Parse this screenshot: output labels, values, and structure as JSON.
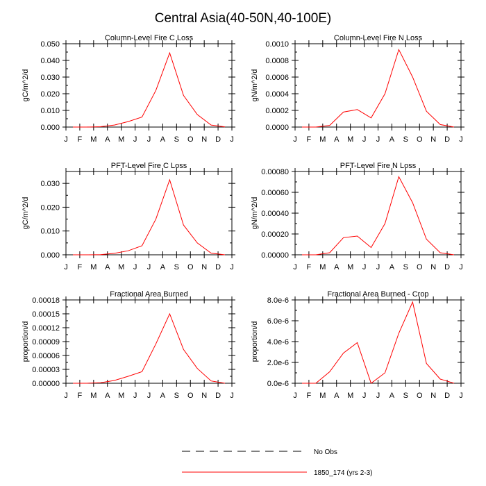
{
  "figure": {
    "title": "Central Asia(40-50N,40-100E)"
  },
  "months": [
    "J",
    "F",
    "M",
    "A",
    "M",
    "J",
    "J",
    "A",
    "S",
    "O",
    "N",
    "D",
    "J"
  ],
  "chart_data": [
    {
      "type": "line",
      "title": "Column-Level Fire C Loss",
      "ylabel": "gC/m^2/d",
      "ylim": [
        0,
        0.05
      ],
      "yticks": [
        "0.000",
        "0.010",
        "0.020",
        "0.030",
        "0.040",
        "0.050"
      ],
      "series": [
        {
          "name": "1850_174 (yrs 2-3)",
          "values": [
            0.0,
            0.0,
            0.0002,
            0.0012,
            0.0033,
            0.006,
            0.022,
            0.0445,
            0.019,
            0.0075,
            0.0012,
            0.0001
          ]
        }
      ]
    },
    {
      "type": "line",
      "title": "Column-Level Fire N Loss",
      "ylabel": "gN/m^2/d",
      "ylim": [
        0,
        0.001
      ],
      "yticks": [
        "0.0000",
        "0.0002",
        "0.0004",
        "0.0006",
        "0.0008",
        "0.0010"
      ],
      "series": [
        {
          "name": "1850_174 (yrs 2-3)",
          "values": [
            0.0,
            0.0,
            2e-05,
            0.00018,
            0.00021,
            0.00011,
            0.0004,
            0.00093,
            0.0006,
            0.00019,
            3e-05,
            0.0
          ]
        }
      ]
    },
    {
      "type": "line",
      "title": "PFT-Level Fire C Loss",
      "ylabel": "gC/m^2/d",
      "ylim": [
        0,
        0.035
      ],
      "yticks": [
        "0.000",
        "0.010",
        "0.020",
        "0.030"
      ],
      "yticks_values": [
        0,
        0.01,
        0.02,
        0.03
      ],
      "series": [
        {
          "name": "1850_174 (yrs 2-3)",
          "values": [
            0.0,
            0.0,
            0.0001,
            0.0006,
            0.0017,
            0.0038,
            0.015,
            0.0315,
            0.0125,
            0.005,
            0.0007,
            0.0
          ]
        }
      ]
    },
    {
      "type": "line",
      "title": "PFT-Level Fire N Loss",
      "ylabel": "gN/m^2/d",
      "ylim": [
        0,
        0.0008
      ],
      "yticks": [
        "0.00000",
        "0.00020",
        "0.00040",
        "0.00060",
        "0.00080"
      ],
      "yticks_values": [
        0,
        0.0002,
        0.0004,
        0.0006,
        0.0008
      ],
      "series": [
        {
          "name": "1850_174 (yrs 2-3)",
          "values": [
            0.0,
            0.0,
            2e-05,
            0.000165,
            0.00018,
            7e-05,
            0.0003,
            0.00075,
            0.0005,
            0.00015,
            2e-05,
            0.0
          ]
        }
      ]
    },
    {
      "type": "line",
      "title": "Fractional Area Burned",
      "ylabel": "proportion/d",
      "ylim": [
        0,
        0.00018
      ],
      "yticks": [
        "0.00000",
        "0.00003",
        "0.00006",
        "0.00009",
        "0.00012",
        "0.00015",
        "0.00018"
      ],
      "yticks_values": [
        0,
        3e-05,
        6e-05,
        9e-05,
        0.00012,
        0.00015,
        0.00018
      ],
      "series": [
        {
          "name": "1850_174 (yrs 2-3)",
          "values": [
            0.0,
            0.0,
            1e-06,
            6e-06,
            1.5e-05,
            2.5e-05,
            8.5e-05,
            0.00015,
            7.3e-05,
            3.2e-05,
            5e-06,
            0.0
          ]
        }
      ]
    },
    {
      "type": "line",
      "title": "Fractional Area Burned - Crop",
      "ylabel": "proportion/d",
      "ylim": [
        0,
        8e-06
      ],
      "yticks": [
        "0.0e-6",
        "2.0e-6",
        "4.0e-6",
        "6.0e-6",
        "8.0e-6"
      ],
      "yticks_values": [
        0,
        2e-06,
        4e-06,
        6e-06,
        8e-06
      ],
      "series": [
        {
          "name": "1850_174 (yrs 2-3)",
          "values": [
            0.0,
            0.0,
            1.1e-06,
            2.9e-06,
            3.9e-06,
            0.0,
            1e-06,
            4.8e-06,
            7.8e-06,
            1.9e-06,
            4e-07,
            0.0
          ]
        }
      ]
    }
  ],
  "legend": {
    "items": [
      {
        "label": "No Obs",
        "style": "dashed",
        "color": "#000000"
      },
      {
        "label": "1850_174 (yrs 2-3)",
        "style": "solid",
        "color": "#ff0000"
      }
    ]
  },
  "colors": {
    "series_line": "#ff0000",
    "axes": "#000000"
  }
}
